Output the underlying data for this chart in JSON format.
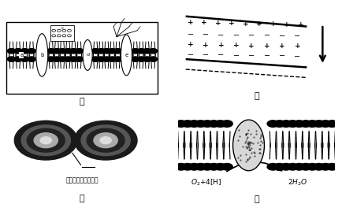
{
  "bg_color": "#ffffff",
  "label_jia": "甲",
  "label_yi": "乙",
  "label_bing": "丙",
  "label_ding": "丁",
  "bing_text": "与膜结合的信号分子"
}
